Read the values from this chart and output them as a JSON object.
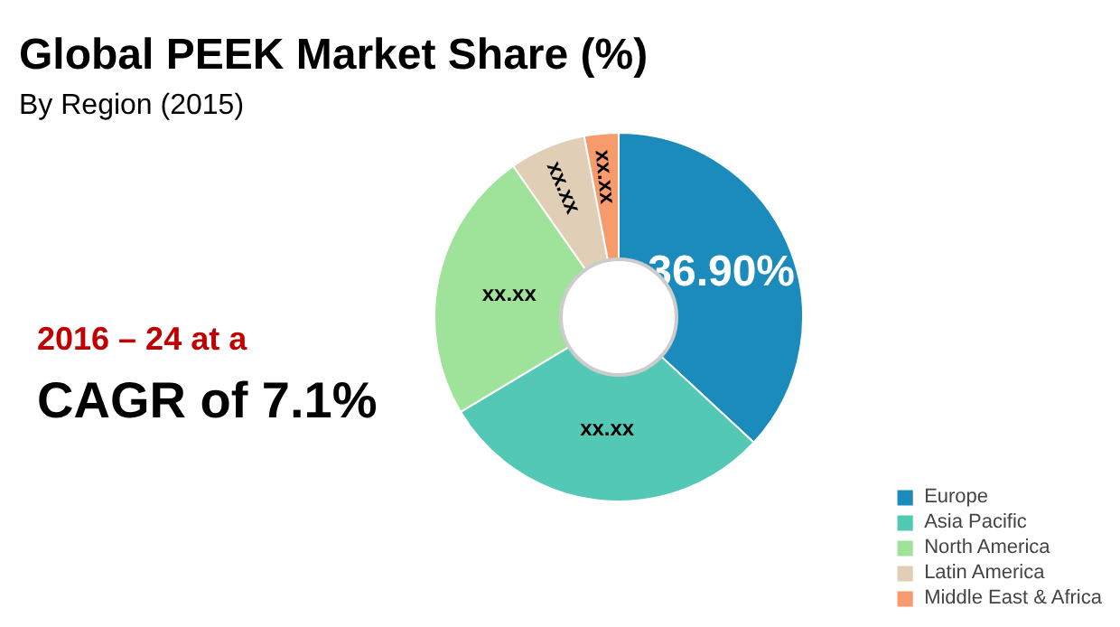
{
  "chart_data": {
    "type": "donut",
    "title": "Global PEEK Market Share (%)",
    "subtitle": "By Region (2015)",
    "categories": [
      "Europe",
      "Asia Pacific",
      "North America",
      "Latin America",
      "Middle East & Africa"
    ],
    "values": [
      36.9,
      29.5,
      23.9,
      6.7,
      3.0
    ],
    "colors": [
      "#1b8bbb",
      "#52c8b5",
      "#9fe29a",
      "#e0ceb6",
      "#f79a6c"
    ],
    "value_labels": [
      "36.90%",
      "xx.xx",
      "xx.xx",
      "xx.xx",
      "xx.xx"
    ],
    "annotations": [
      "2016 – 24 at a",
      "CAGR of 7.1%"
    ],
    "legend": "bottom right"
  }
}
